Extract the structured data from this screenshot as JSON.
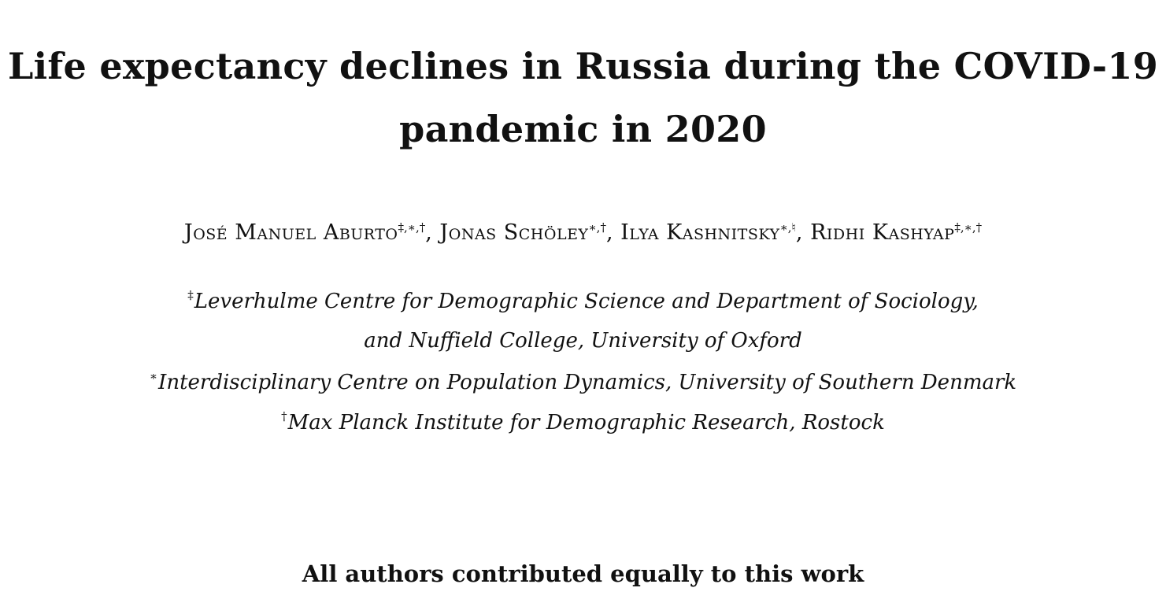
{
  "title": {
    "line1": "Life expectancy declines in Russia during the COVID-19",
    "line2": "pandemic in 2020"
  },
  "authors": [
    {
      "name": "José Manuel Aburto",
      "marks": "‡,∗,†",
      "sep": ", "
    },
    {
      "name": "Jonas Schöley",
      "marks": "∗,†",
      "sep": ", "
    },
    {
      "name": "Ilya Kashnitsky",
      "marks": "∗,♮",
      "sep": ", "
    },
    {
      "name": "Ridhi Kashyap",
      "marks": "‡,∗,†",
      "sep": ""
    }
  ],
  "affiliations": [
    {
      "mark": "‡",
      "text": "Leverhulme Centre for Demographic Science and Department of Sociology,"
    },
    {
      "mark": "",
      "text": "and Nuffield College, University of Oxford"
    },
    {
      "mark": "∗",
      "text": "Interdisciplinary Centre on Population Dynamics, University of Southern Denmark"
    },
    {
      "mark": "†",
      "text": "Max Planck Institute for Demographic Research, Rostock"
    }
  ],
  "note": "All authors contributed equally to this work"
}
